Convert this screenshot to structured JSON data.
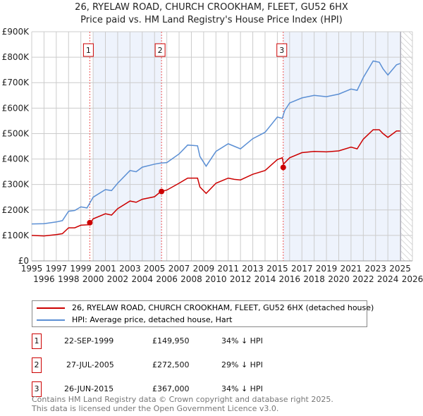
{
  "title_line1": "26, RYELAW ROAD, CHURCH CROOKHAM, FLEET, GU52 6HX",
  "title_line2": "Price paid vs. HM Land Registry's House Price Index (HPI)",
  "colors": {
    "property": "#cc0000",
    "hpi": "#5b8fd4",
    "shade": "#eef3fc"
  },
  "chart_data": {
    "type": "line",
    "title": "26, RYELAW ROAD, CHURCH CROOKHAM, FLEET, GU52 6HX - Price paid vs. HM Land Registry's House Price Index (HPI)",
    "xlim": [
      1995,
      2026
    ],
    "ylim": [
      0,
      900000
    ],
    "xticks": [
      "1995",
      "1996",
      "1997",
      "1998",
      "1999",
      "2000",
      "2001",
      "2002",
      "2003",
      "2004",
      "2005",
      "2006",
      "2007",
      "2008",
      "2009",
      "2010",
      "2011",
      "2012",
      "2013",
      "2014",
      "2015",
      "2016",
      "2017",
      "2018",
      "2019",
      "2020",
      "2021",
      "2022",
      "2023",
      "2024",
      "2025",
      "2026"
    ],
    "yticks": [
      {
        "v": 0,
        "label": "£0"
      },
      {
        "v": 100000,
        "label": "£100K"
      },
      {
        "v": 200000,
        "label": "£200K"
      },
      {
        "v": 300000,
        "label": "£300K"
      },
      {
        "v": 400000,
        "label": "£400K"
      },
      {
        "v": 500000,
        "label": "£500K"
      },
      {
        "v": 600000,
        "label": "£600K"
      },
      {
        "v": 700000,
        "label": "£700K"
      },
      {
        "v": 800000,
        "label": "£800K"
      },
      {
        "v": 900000,
        "label": "£900K"
      }
    ],
    "grid": true,
    "series": [
      {
        "name": "26, RYELAW ROAD, CHURCH CROOKHAM, FLEET, GU52 6HX (detached house)",
        "color": "#cc0000",
        "x": [
          1995,
          1996,
          1997,
          1997.5,
          1998,
          1998.5,
          1999,
          1999.7,
          2000,
          2001,
          2001.5,
          2002,
          2003,
          2003.5,
          2004,
          2005,
          2005.5,
          2006,
          2007,
          2007.7,
          2008.5,
          2008.7,
          2009.2,
          2010,
          2011,
          2011.5,
          2012,
          2013,
          2014,
          2015,
          2015.4,
          2015.5,
          2016,
          2017,
          2018,
          2019,
          2020,
          2021,
          2021.5,
          2022,
          2022.8,
          2023.3,
          2023.6,
          2024,
          2024.7,
          2025
        ],
        "y": [
          100000,
          98000,
          103000,
          107000,
          130000,
          130000,
          140000,
          142000,
          165000,
          185000,
          180000,
          205000,
          235000,
          230000,
          242000,
          252000,
          272000,
          278000,
          305000,
          325000,
          325000,
          290000,
          265000,
          305000,
          325000,
          320000,
          318000,
          340000,
          355000,
          398000,
          405000,
          380000,
          405000,
          425000,
          430000,
          428000,
          432000,
          447000,
          440000,
          478000,
          515000,
          515000,
          500000,
          485000,
          510000,
          510000
        ]
      },
      {
        "name": "HPI: Average price, detached house, Hart",
        "color": "#5b8fd4",
        "x": [
          1995,
          1996,
          1997,
          1997.5,
          1998,
          1998.5,
          1999,
          1999.5,
          2000,
          2001,
          2001.5,
          2002,
          2003,
          2003.5,
          2004,
          2005,
          2005.5,
          2006,
          2007,
          2007.7,
          2008.5,
          2008.7,
          2009.2,
          2010,
          2011,
          2011.5,
          2012,
          2013,
          2014,
          2015,
          2015.4,
          2015.6,
          2016,
          2017,
          2018,
          2019,
          2020,
          2021,
          2021.5,
          2022,
          2022.8,
          2023.3,
          2023.6,
          2024,
          2024.7,
          2025
        ],
        "y": [
          145000,
          146000,
          153000,
          158000,
          195000,
          198000,
          212000,
          208000,
          250000,
          280000,
          276000,
          305000,
          355000,
          350000,
          368000,
          380000,
          384000,
          386000,
          420000,
          455000,
          452000,
          410000,
          372000,
          430000,
          460000,
          450000,
          440000,
          480000,
          505000,
          565000,
          560000,
          590000,
          620000,
          640000,
          650000,
          645000,
          655000,
          675000,
          670000,
          720000,
          785000,
          780000,
          755000,
          730000,
          770000,
          775000
        ]
      }
    ],
    "sales": [
      {
        "label": "1",
        "x": 1999.73,
        "price": 149950,
        "date": "22-SEP-1999",
        "price_text": "£149,950",
        "hpi_text": "34% ↓ HPI"
      },
      {
        "label": "2",
        "x": 2005.57,
        "price": 272500,
        "date": "27-JUL-2005",
        "price_text": "£272,500",
        "hpi_text": "29% ↓ HPI"
      },
      {
        "label": "3",
        "x": 2015.48,
        "price": 367000,
        "date": "26-JUN-2015",
        "price_text": "£367,000",
        "hpi_text": "34% ↓ HPI"
      }
    ],
    "shaded_ranges": [
      [
        2000.0,
        2005.57
      ],
      [
        2015.48,
        2025.0
      ]
    ],
    "forecast_hatch_from": 2025.05
  },
  "legend": {
    "property": "26, RYELAW ROAD, CHURCH CROOKHAM, FLEET, GU52 6HX (detached house)",
    "hpi": "HPI: Average price, detached house, Hart"
  },
  "footer": {
    "line1": "Contains HM Land Registry data © Crown copyright and database right 2025.",
    "line2": "This data is licensed under the Open Government Licence v3.0."
  }
}
